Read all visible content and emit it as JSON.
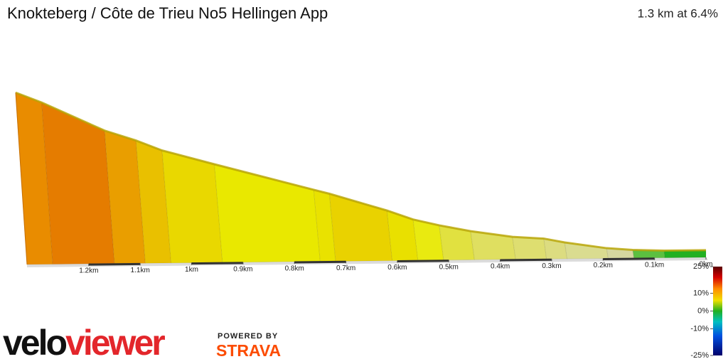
{
  "chart_data": {
    "type": "profile",
    "title": "Knokteberg / Côte de Trieu No5 Hellingen App",
    "subtitle": "1.3 km at 6.4%",
    "distance": [
      1.32,
      1.27,
      1.15,
      1.09,
      1.04,
      0.94,
      0.75,
      0.72,
      0.61,
      0.56,
      0.51,
      0.45,
      0.37,
      0.31,
      0.27,
      0.19,
      0.14,
      0.08,
      0
    ],
    "elevation": [
      84,
      79,
      65,
      60,
      55,
      48,
      35,
      33,
      24.5,
      20,
      17,
      14,
      11,
      10,
      8,
      5,
      4,
      3.5,
      3.5
    ],
    "segment_colors": [
      "#e98c00",
      "#e57c00",
      "#e99e00",
      "#e9c000",
      "#e9d800",
      "#e9e800",
      "#e9e200",
      "#e9d200",
      "#e9e000",
      "#e9ea10",
      "#e1e140",
      "#dfdf60",
      "#dede70",
      "#dcdc80",
      "#dadc90",
      "#d6d8a0",
      "#5cc040",
      "#22b022"
    ],
    "xlim": [
      1.32,
      0
    ],
    "xticks": [
      {
        "value": 1.2,
        "label": "1.2km"
      },
      {
        "value": 1.1,
        "label": "1.1km"
      },
      {
        "value": 1,
        "label": "1km"
      },
      {
        "value": 0.9,
        "label": "0.9km"
      },
      {
        "value": 0.8,
        "label": "0.8km"
      },
      {
        "value": 0.7,
        "label": "0.7km"
      },
      {
        "value": 0.6,
        "label": "0.6km"
      },
      {
        "value": 0.5,
        "label": "0.5km"
      },
      {
        "value": 0.4,
        "label": "0.4km"
      },
      {
        "value": 0.3,
        "label": "0.3km"
      },
      {
        "value": 0.2,
        "label": "0.2km"
      },
      {
        "value": 0.1,
        "label": "0.1km"
      },
      {
        "value": 0,
        "label": "0km"
      }
    ],
    "ylim": [
      0,
      90
    ],
    "color_scale": {
      "clim": [
        -25,
        25
      ],
      "ticks": [
        {
          "value": 25,
          "label": "25%"
        },
        {
          "value": 10,
          "label": "10%"
        },
        {
          "value": 0,
          "label": "0%"
        },
        {
          "value": -10,
          "label": "-10%"
        },
        {
          "value": -25,
          "label": "-25%"
        }
      ]
    },
    "logo": {
      "brand_a": "velo",
      "brand_b": "viewer",
      "powered": "POWERED BY",
      "partner": "STRAVA"
    }
  }
}
